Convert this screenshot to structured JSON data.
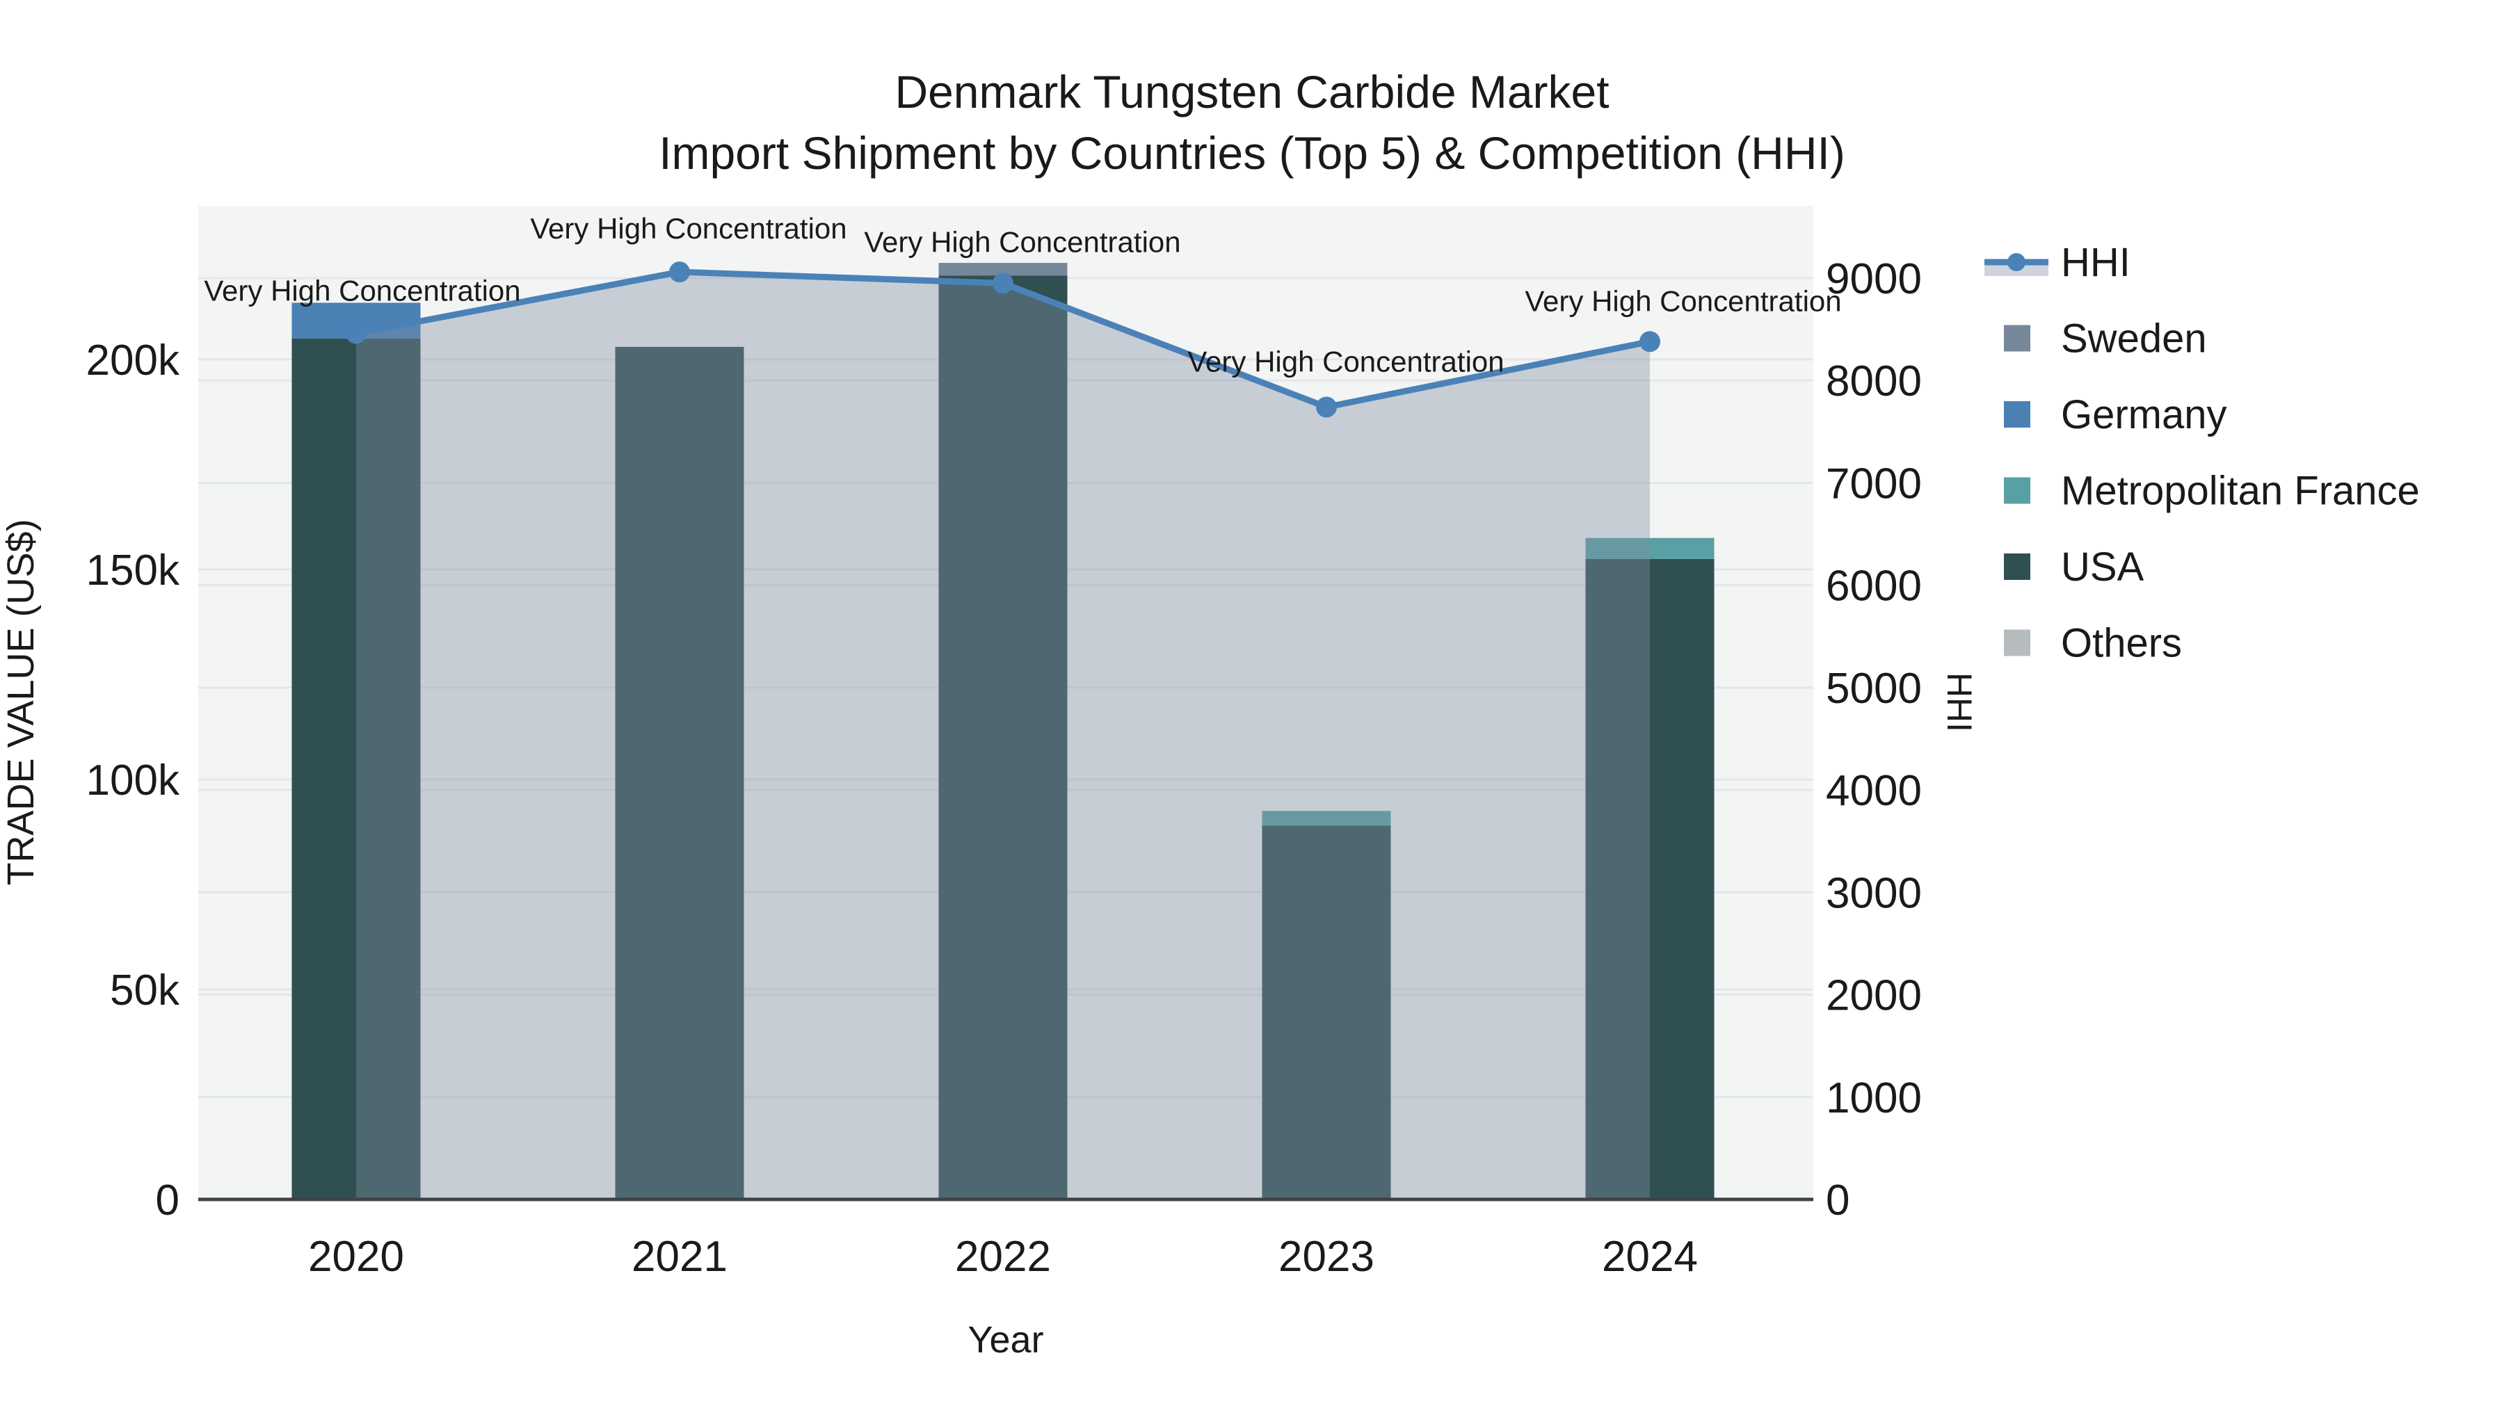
{
  "title": {
    "line1": "Denmark Tungsten Carbide Market",
    "line2": "Import Shipment by Countries (Top 5) & Competition (HHI)"
  },
  "axes": {
    "x": {
      "title": "Year",
      "ticks": [
        "2020",
        "2021",
        "2022",
        "2023",
        "2024"
      ]
    },
    "y_left": {
      "title": "TRADE VALUE (US$)",
      "ticks": [
        "0",
        "50k",
        "100k",
        "150k",
        "200k"
      ],
      "tick_values": [
        0,
        50000,
        100000,
        150000,
        200000
      ],
      "range": [
        0,
        200000
      ]
    },
    "y_right": {
      "title": "HHI",
      "ticks": [
        "0",
        "1000",
        "2000",
        "3000",
        "4000",
        "5000",
        "6000",
        "7000",
        "8000",
        "9000"
      ],
      "tick_values": [
        0,
        1000,
        2000,
        3000,
        4000,
        5000,
        6000,
        7000,
        8000,
        9000
      ],
      "range": [
        0,
        9000
      ]
    }
  },
  "legend": {
    "items": [
      {
        "label": "HHI",
        "type": "line",
        "color": "#4a82b8"
      },
      {
        "label": "Sweden",
        "type": "swatch",
        "color": "#76879a"
      },
      {
        "label": "Germany",
        "type": "swatch",
        "color": "#4a80b4"
      },
      {
        "label": "Metropolitan France",
        "type": "swatch",
        "color": "#58a0a3"
      },
      {
        "label": "USA",
        "type": "swatch",
        "color": "#2f4f51"
      },
      {
        "label": "Others",
        "type": "swatch",
        "color": "#b6bcbd"
      }
    ]
  },
  "annotations": [
    "Very High Concentration",
    "Very High Concentration",
    "Very High Concentration",
    "Very High Concentration",
    "Very High Concentration"
  ],
  "colors": {
    "plot_background": "#f3f4f4",
    "figure_background": "#ffffff",
    "gridline": "#e4e6e9",
    "axis_line": "#3f4346",
    "hhi_line": "#4a82b8",
    "hhi_fill": "rgba(130,142,162,0.38)",
    "text": "#1a1a1a"
  },
  "chart_data": {
    "type": "bar+line",
    "categories": [
      "2020",
      "2021",
      "2022",
      "2023",
      "2024"
    ],
    "bar_series": [
      {
        "name": "Sweden",
        "color": "#76879a",
        "values": [
          0,
          0,
          3000,
          0,
          0
        ]
      },
      {
        "name": "Germany",
        "color": "#4a80b4",
        "values": [
          8500,
          0,
          0,
          0,
          0
        ]
      },
      {
        "name": "Metropolitan France",
        "color": "#58a0a3",
        "values": [
          0,
          0,
          0,
          3500,
          5000
        ]
      },
      {
        "name": "USA",
        "color": "#2f4f51",
        "values": [
          205000,
          203000,
          220000,
          89000,
          152500
        ]
      },
      {
        "name": "Others",
        "color": "#b6bcbd",
        "values": [
          0,
          0,
          0,
          0,
          0
        ]
      }
    ],
    "stack_order_bottom_to_top": [
      "USA",
      "Metropolitan France",
      "Germany",
      "Sweden",
      "Others"
    ],
    "line_series": {
      "name": "HHI",
      "color": "#4a82b8",
      "values": [
        8460,
        9060,
        8950,
        7740,
        8380
      ],
      "axis": "y_right",
      "area_fill": "rgba(130,142,162,0.38)"
    },
    "title": "Denmark Tungsten Carbide Market — Import Shipment by Countries (Top 5) & Competition (HHI)",
    "xlabel": "Year",
    "ylabel_left": "TRADE VALUE (US$)",
    "ylabel_right": "HHI",
    "ylim_left": [
      0,
      200000
    ],
    "ylim_right": [
      0,
      9000
    ],
    "grid": true,
    "legend_position": "right"
  }
}
